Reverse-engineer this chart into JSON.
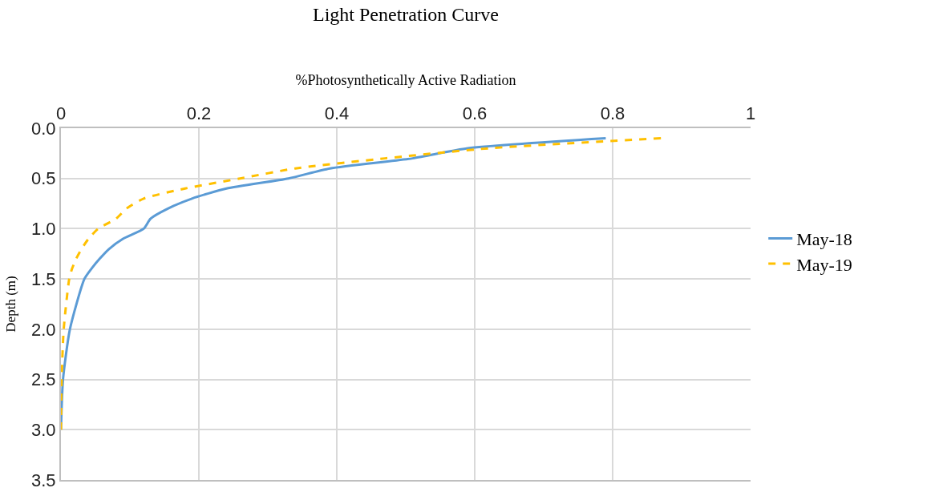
{
  "chart_data": {
    "type": "line",
    "title": "Light Penetration Curve",
    "xlabel": "%Photosynthetically Active Radiation",
    "ylabel": "Depth (m)",
    "xlim": [
      0,
      1
    ],
    "xticks": [
      0,
      0.2,
      0.4,
      0.6,
      0.8,
      1
    ],
    "ylim": [
      3.5,
      0
    ],
    "yticks": [
      {
        "value": 0,
        "label": "0.0"
      },
      {
        "value": 0.5,
        "label": "0.5"
      },
      {
        "value": 1,
        "label": "1.0"
      },
      {
        "value": 1.5,
        "label": "1.5"
      },
      {
        "value": 2,
        "label": "2.0"
      },
      {
        "value": 2.5,
        "label": "2.5"
      },
      {
        "value": 3,
        "label": "3.0"
      },
      {
        "value": 3.5,
        "label": "3.5"
      }
    ],
    "grid": true,
    "legend": "right",
    "marker": "none",
    "series": [
      {
        "name": "May-18",
        "color": "#5b9bd5",
        "line_style": "solid",
        "x": [
          0.79,
          0.59,
          0.51,
          0.39,
          0.33,
          0.24,
          0.19,
          0.155,
          0.13,
          0.12,
          0.09,
          0.07,
          0.056,
          0.044,
          0.034,
          0.013,
          0.003,
          0
        ],
        "values": [
          0.1,
          0.2,
          0.3,
          0.4,
          0.5,
          0.6,
          0.7,
          0.8,
          0.9,
          1.0,
          1.1,
          1.2,
          1.3,
          1.4,
          1.5,
          2.0,
          2.5,
          3.0
        ]
      },
      {
        "name": "May-19",
        "color": "#ffc000",
        "line_style": "dashed",
        "x": [
          0.87,
          0.62,
          0.47,
          0.34,
          0.26,
          0.18,
          0.12,
          0.095,
          0.08,
          0.054,
          0.04,
          0.03,
          0.022,
          0.016,
          0.012,
          0.004,
          0.001,
          0
        ],
        "values": [
          0.1,
          0.2,
          0.3,
          0.4,
          0.5,
          0.6,
          0.7,
          0.8,
          0.9,
          1.0,
          1.1,
          1.2,
          1.3,
          1.4,
          1.5,
          2.0,
          2.5,
          3.0
        ]
      }
    ]
  }
}
